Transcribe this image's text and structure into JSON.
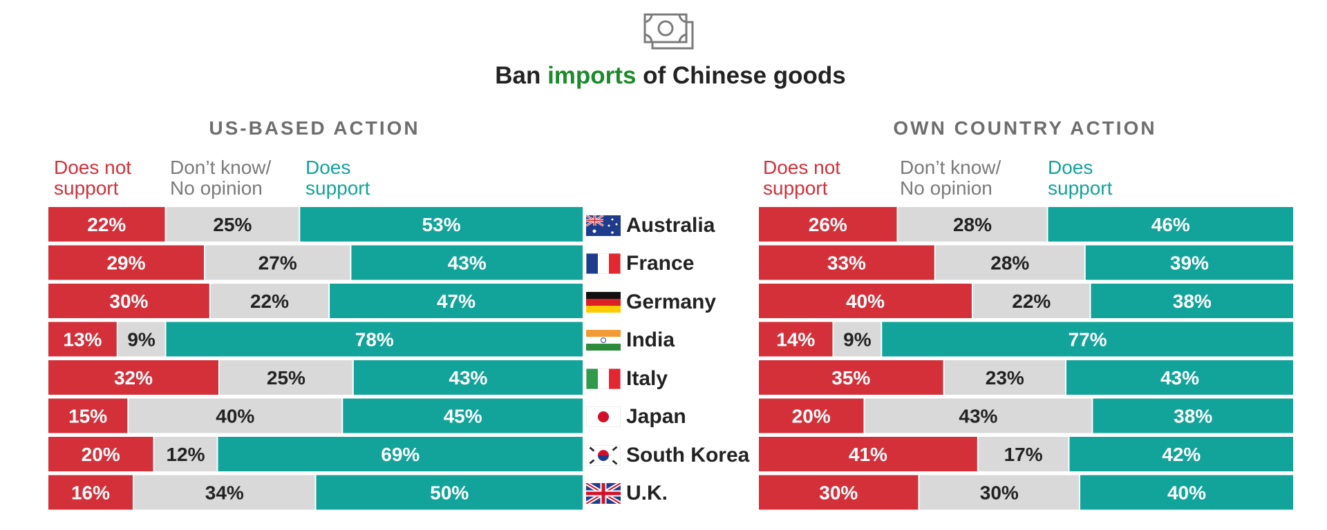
{
  "title": {
    "before": "Ban ",
    "accent": "imports",
    "after": " of Chinese goods"
  },
  "icon": "money-bill-icon",
  "colors": {
    "not_support": "#d3303a",
    "dont_know": "#d9d9d9",
    "support": "#12a39a",
    "accent": "#1a8a2a"
  },
  "legend": {
    "not_support": [
      "Does not",
      "support"
    ],
    "dont_know": [
      "Don’t know/",
      "No opinion"
    ],
    "support": [
      "Does",
      "support"
    ]
  },
  "countries": [
    {
      "name": "Australia",
      "flag": "australia-flag-icon"
    },
    {
      "name": "France",
      "flag": "france-flag-icon"
    },
    {
      "name": "Germany",
      "flag": "germany-flag-icon"
    },
    {
      "name": "India",
      "flag": "india-flag-icon"
    },
    {
      "name": "Italy",
      "flag": "italy-flag-icon"
    },
    {
      "name": "Japan",
      "flag": "japan-flag-icon"
    },
    {
      "name": "South Korea",
      "flag": "south-korea-flag-icon"
    },
    {
      "name": "U.K.",
      "flag": "uk-flag-icon"
    }
  ],
  "chart_data": [
    {
      "type": "bar",
      "orientation": "horizontal-stacked",
      "title": "US-BASED ACTION",
      "categories": [
        "Australia",
        "France",
        "Germany",
        "India",
        "Italy",
        "Japan",
        "South Korea",
        "U.K."
      ],
      "series": [
        {
          "name": "Does not support",
          "values": [
            22,
            29,
            30,
            13,
            32,
            15,
            20,
            16
          ]
        },
        {
          "name": "Don’t know/No opinion",
          "values": [
            25,
            27,
            22,
            9,
            25,
            40,
            12,
            34
          ]
        },
        {
          "name": "Does support",
          "values": [
            53,
            43,
            47,
            78,
            43,
            45,
            69,
            50
          ]
        }
      ],
      "unit": "%"
    },
    {
      "type": "bar",
      "orientation": "horizontal-stacked",
      "title": "OWN COUNTRY ACTION",
      "categories": [
        "Australia",
        "France",
        "Germany",
        "India",
        "Italy",
        "Japan",
        "South Korea",
        "U.K."
      ],
      "series": [
        {
          "name": "Does not support",
          "values": [
            26,
            33,
            40,
            14,
            35,
            20,
            41,
            30
          ]
        },
        {
          "name": "Don’t know/No opinion",
          "values": [
            28,
            28,
            22,
            9,
            23,
            43,
            17,
            30
          ]
        },
        {
          "name": "Does support",
          "values": [
            46,
            39,
            38,
            77,
            43,
            38,
            42,
            40
          ]
        }
      ],
      "unit": "%"
    }
  ]
}
